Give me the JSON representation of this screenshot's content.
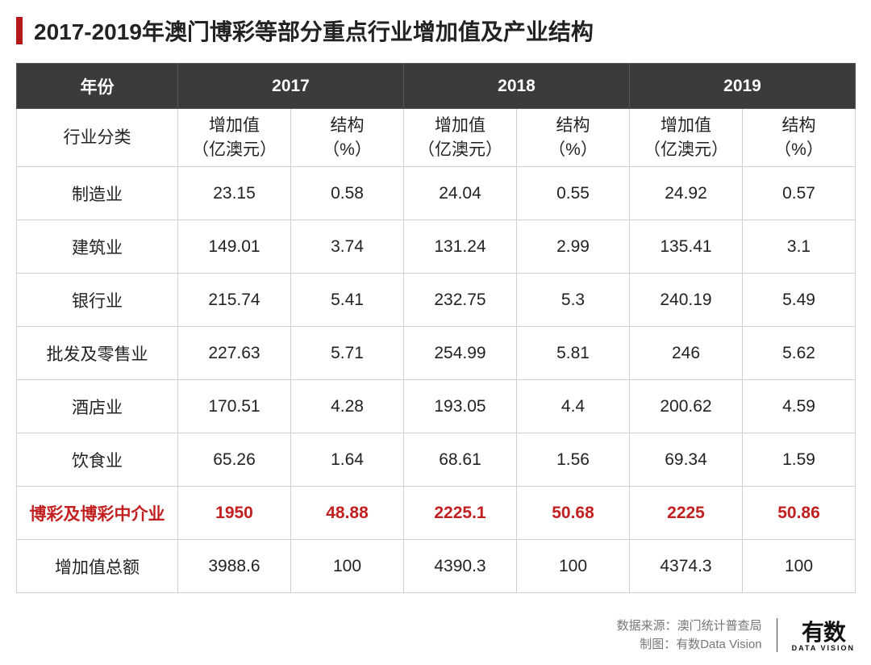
{
  "title": "2017-2019年澳门博彩等部分重点行业增加值及产业结构",
  "accent_color": "#b51818",
  "header_bg": "#3b3b3b",
  "highlight_color": "#c22020",
  "border_color": "#d0d0d0",
  "table": {
    "year_header_label": "年份",
    "years": [
      "2017",
      "2018",
      "2019"
    ],
    "category_header": "行业分类",
    "sub_headers": {
      "value": "增加值\n（亿澳元）",
      "share": "结构\n（%）"
    },
    "rows": [
      {
        "label": "制造业",
        "v2017": "23.15",
        "s2017": "0.58",
        "v2018": "24.04",
        "s2018": "0.55",
        "v2019": "24.92",
        "s2019": "0.57",
        "highlight": false
      },
      {
        "label": "建筑业",
        "v2017": "149.01",
        "s2017": "3.74",
        "v2018": "131.24",
        "s2018": "2.99",
        "v2019": "135.41",
        "s2019": "3.1",
        "highlight": false
      },
      {
        "label": "银行业",
        "v2017": "215.74",
        "s2017": "5.41",
        "v2018": "232.75",
        "s2018": "5.3",
        "v2019": "240.19",
        "s2019": "5.49",
        "highlight": false
      },
      {
        "label": "批发及零售业",
        "v2017": "227.63",
        "s2017": "5.71",
        "v2018": "254.99",
        "s2018": "5.81",
        "v2019": "246",
        "s2019": "5.62",
        "highlight": false
      },
      {
        "label": "酒店业",
        "v2017": "170.51",
        "s2017": "4.28",
        "v2018": "193.05",
        "s2018": "4.4",
        "v2019": "200.62",
        "s2019": "4.59",
        "highlight": false
      },
      {
        "label": "饮食业",
        "v2017": "65.26",
        "s2017": "1.64",
        "v2018": "68.61",
        "s2018": "1.56",
        "v2019": "69.34",
        "s2019": "1.59",
        "highlight": false
      },
      {
        "label": "博彩及博彩中介业",
        "v2017": "1950",
        "s2017": "48.88",
        "v2018": "2225.1",
        "s2018": "50.68",
        "v2019": "2225",
        "s2019": "50.86",
        "highlight": true
      },
      {
        "label": "增加值总额",
        "v2017": "3988.6",
        "s2017": "100",
        "v2018": "4390.3",
        "s2018": "100",
        "v2019": "4374.3",
        "s2019": "100",
        "highlight": false
      }
    ]
  },
  "footer": {
    "source_label": "数据来源：",
    "source_value": "澳门统计普查局",
    "credit_label": "制图：",
    "credit_value": "有数Data Vision",
    "logo_cn": "有数",
    "logo_en": "DATA VISION"
  }
}
